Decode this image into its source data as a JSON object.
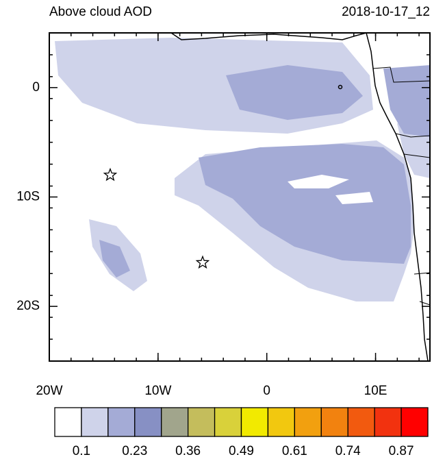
{
  "title": "Above cloud AOD",
  "date": "2018-10-17_12",
  "map": {
    "lonlim": [
      -20,
      15
    ],
    "latlim": [
      -25,
      5
    ],
    "xticks": [
      {
        "value": -20,
        "label": "20W"
      },
      {
        "value": -10,
        "label": "10W"
      },
      {
        "value": 0,
        "label": "0"
      },
      {
        "value": 10,
        "label": "10E"
      }
    ],
    "yticks": [
      {
        "value": 0,
        "label": "0"
      },
      {
        "value": -10,
        "label": "10S"
      },
      {
        "value": -20,
        "label": "20S"
      }
    ],
    "markers": [
      {
        "lon": -14.4,
        "lat": -8
      },
      {
        "lon": -5.9,
        "lat": -16
      }
    ]
  },
  "colorbar": {
    "colors": [
      "#ffffff",
      "#cfd3ea",
      "#a4abd6",
      "#8790c4",
      "#a1a58c",
      "#c4bd5c",
      "#d9d13a",
      "#f2ea00",
      "#f2c80f",
      "#f2a00f",
      "#f2820f",
      "#f25a0f",
      "#f2320f",
      "#ff0000"
    ],
    "ticks": [
      {
        "value": 0.1,
        "label": "0.1"
      },
      {
        "value": 0.23,
        "label": "0.23"
      },
      {
        "value": 0.36,
        "label": "0.36"
      },
      {
        "value": 0.49,
        "label": "0.49"
      },
      {
        "value": 0.61,
        "label": "0.61"
      },
      {
        "value": 0.74,
        "label": "0.74"
      },
      {
        "value": 0.87,
        "label": "0.87"
      }
    ]
  }
}
